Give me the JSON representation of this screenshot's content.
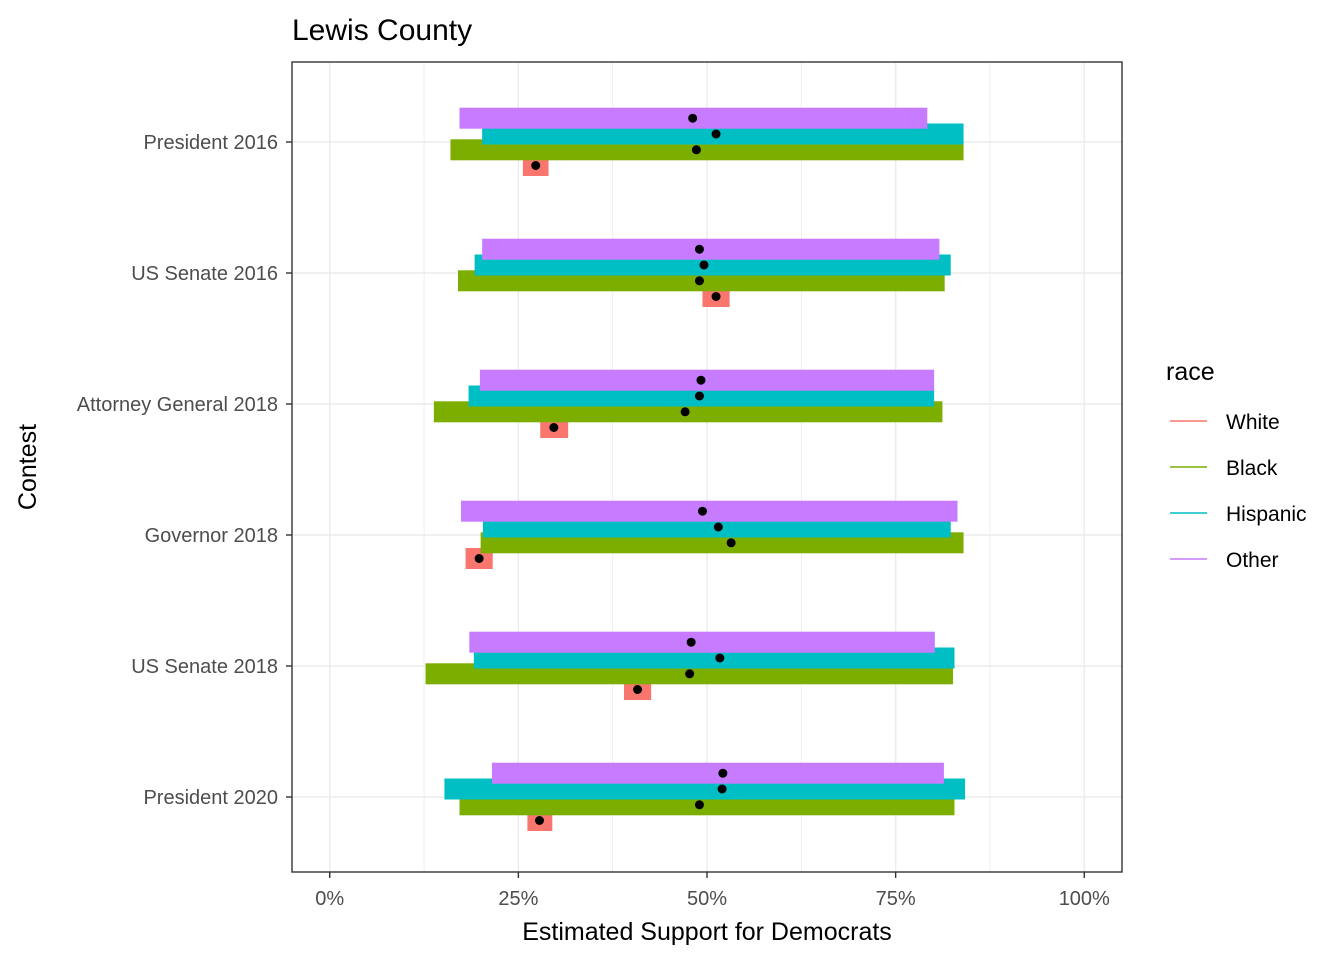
{
  "chart_data": {
    "type": "bar",
    "title": "Lewis County",
    "xlabel": "Estimated Support for Democrats",
    "ylabel": "Contest",
    "xlim": [
      -0.05,
      1.05
    ],
    "x_ticks": [
      0,
      0.25,
      0.5,
      0.75,
      1.0
    ],
    "x_tick_labels": [
      "0%",
      "25%",
      "50%",
      "75%",
      "100%"
    ],
    "grid": true,
    "legend_position": "right",
    "legend_title": "race",
    "categories": [
      "President 2016",
      "US Senate 2016",
      "Attorney General 2018",
      "Governor 2018",
      "US Senate 2018",
      "President 2020"
    ],
    "series": [
      {
        "name": "White",
        "color": "#F8766D",
        "estimates": [
          0.273,
          0.512,
          0.297,
          0.198,
          0.408,
          0.278
        ],
        "lower": [
          0.256,
          0.494,
          0.279,
          0.18,
          0.39,
          0.262
        ],
        "upper": [
          0.29,
          0.53,
          0.316,
          0.216,
          0.426,
          0.295
        ]
      },
      {
        "name": "Black",
        "color": "#7CAE00",
        "estimates": [
          0.486,
          0.49,
          0.471,
          0.532,
          0.477,
          0.49
        ],
        "lower": [
          0.16,
          0.17,
          0.138,
          0.2,
          0.127,
          0.172
        ],
        "upper": [
          0.84,
          0.815,
          0.812,
          0.84,
          0.826,
          0.828
        ]
      },
      {
        "name": "Hispanic",
        "color": "#00BFC4",
        "estimates": [
          0.512,
          0.496,
          0.49,
          0.515,
          0.517,
          0.52
        ],
        "lower": [
          0.202,
          0.192,
          0.184,
          0.203,
          0.191,
          0.152
        ],
        "upper": [
          0.84,
          0.823,
          0.801,
          0.823,
          0.828,
          0.842
        ]
      },
      {
        "name": "Other",
        "color": "#C77CFF",
        "estimates": [
          0.481,
          0.49,
          0.492,
          0.494,
          0.479,
          0.521
        ],
        "lower": [
          0.172,
          0.202,
          0.199,
          0.174,
          0.185,
          0.215
        ],
        "upper": [
          0.792,
          0.808,
          0.801,
          0.832,
          0.802,
          0.814
        ]
      }
    ]
  }
}
